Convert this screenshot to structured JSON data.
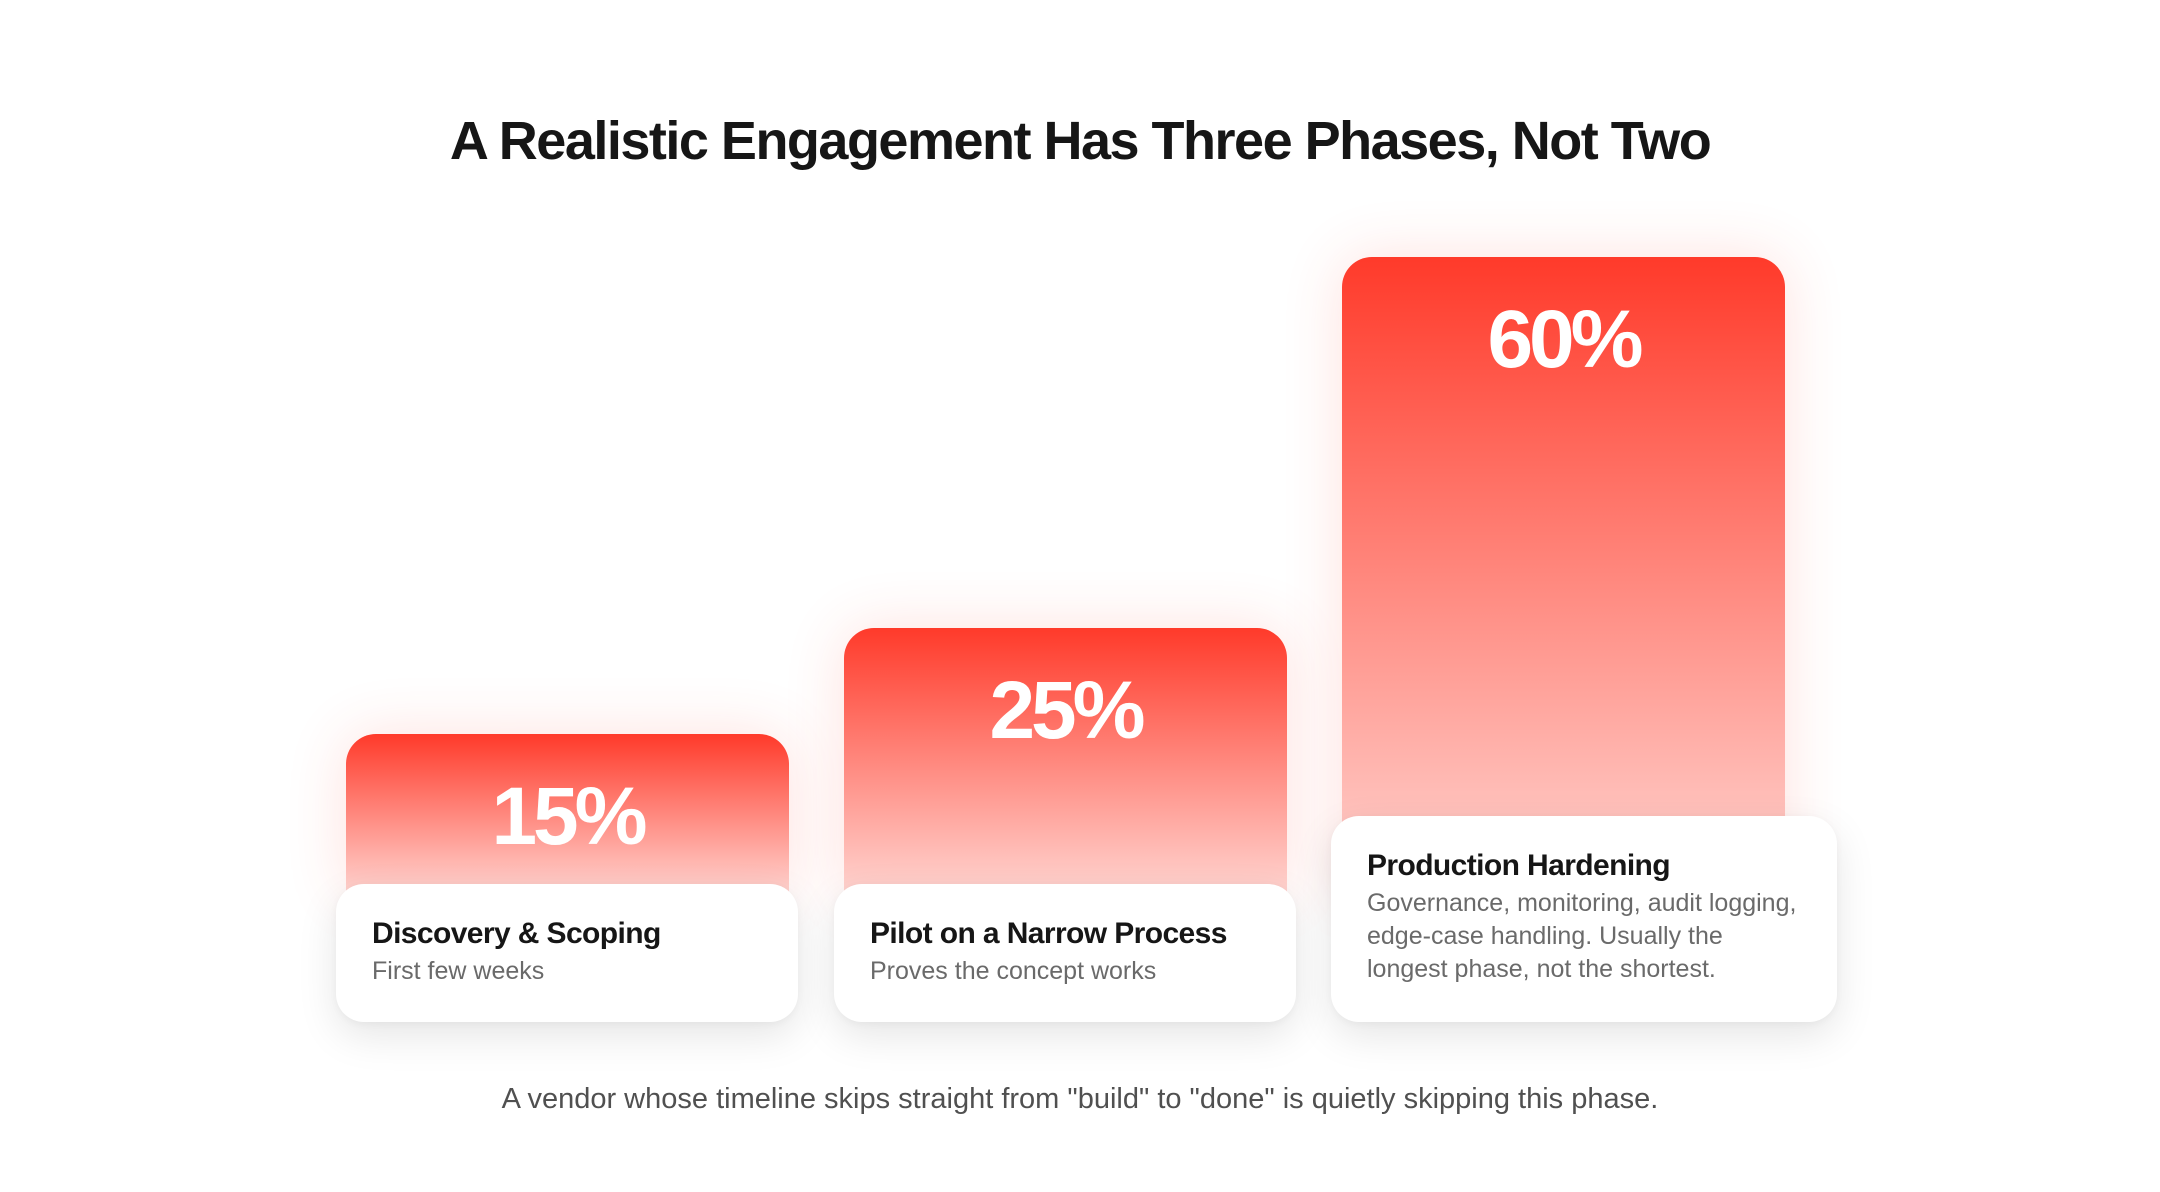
{
  "title": "A Realistic Engagement Has Three Phases, Not Two",
  "footnote": "A vendor whose timeline skips straight from \"build\" to \"done\" is quietly skipping this phase.",
  "colors": {
    "bar_top": "#ff3a2a",
    "bar_bottom": "#ffd4d0",
    "title": "#161616",
    "subtitle": "#6a6a6a"
  },
  "chart_data": {
    "type": "bar",
    "categories": [
      "Discovery & Scoping",
      "Pilot on a Narrow Process",
      "Production Hardening"
    ],
    "values": [
      15,
      25,
      60
    ],
    "value_labels": [
      "15%",
      "25%",
      "60%"
    ],
    "descriptions": [
      "First few weeks",
      "Proves the concept works",
      "Governance, monitoring, audit logging, edge-case handling. Usually the longest phase, not the shortest."
    ],
    "title": "A Realistic Engagement Has Three Phases, Not Two",
    "xlabel": "",
    "ylabel": "",
    "grid": false,
    "legend": "none"
  }
}
